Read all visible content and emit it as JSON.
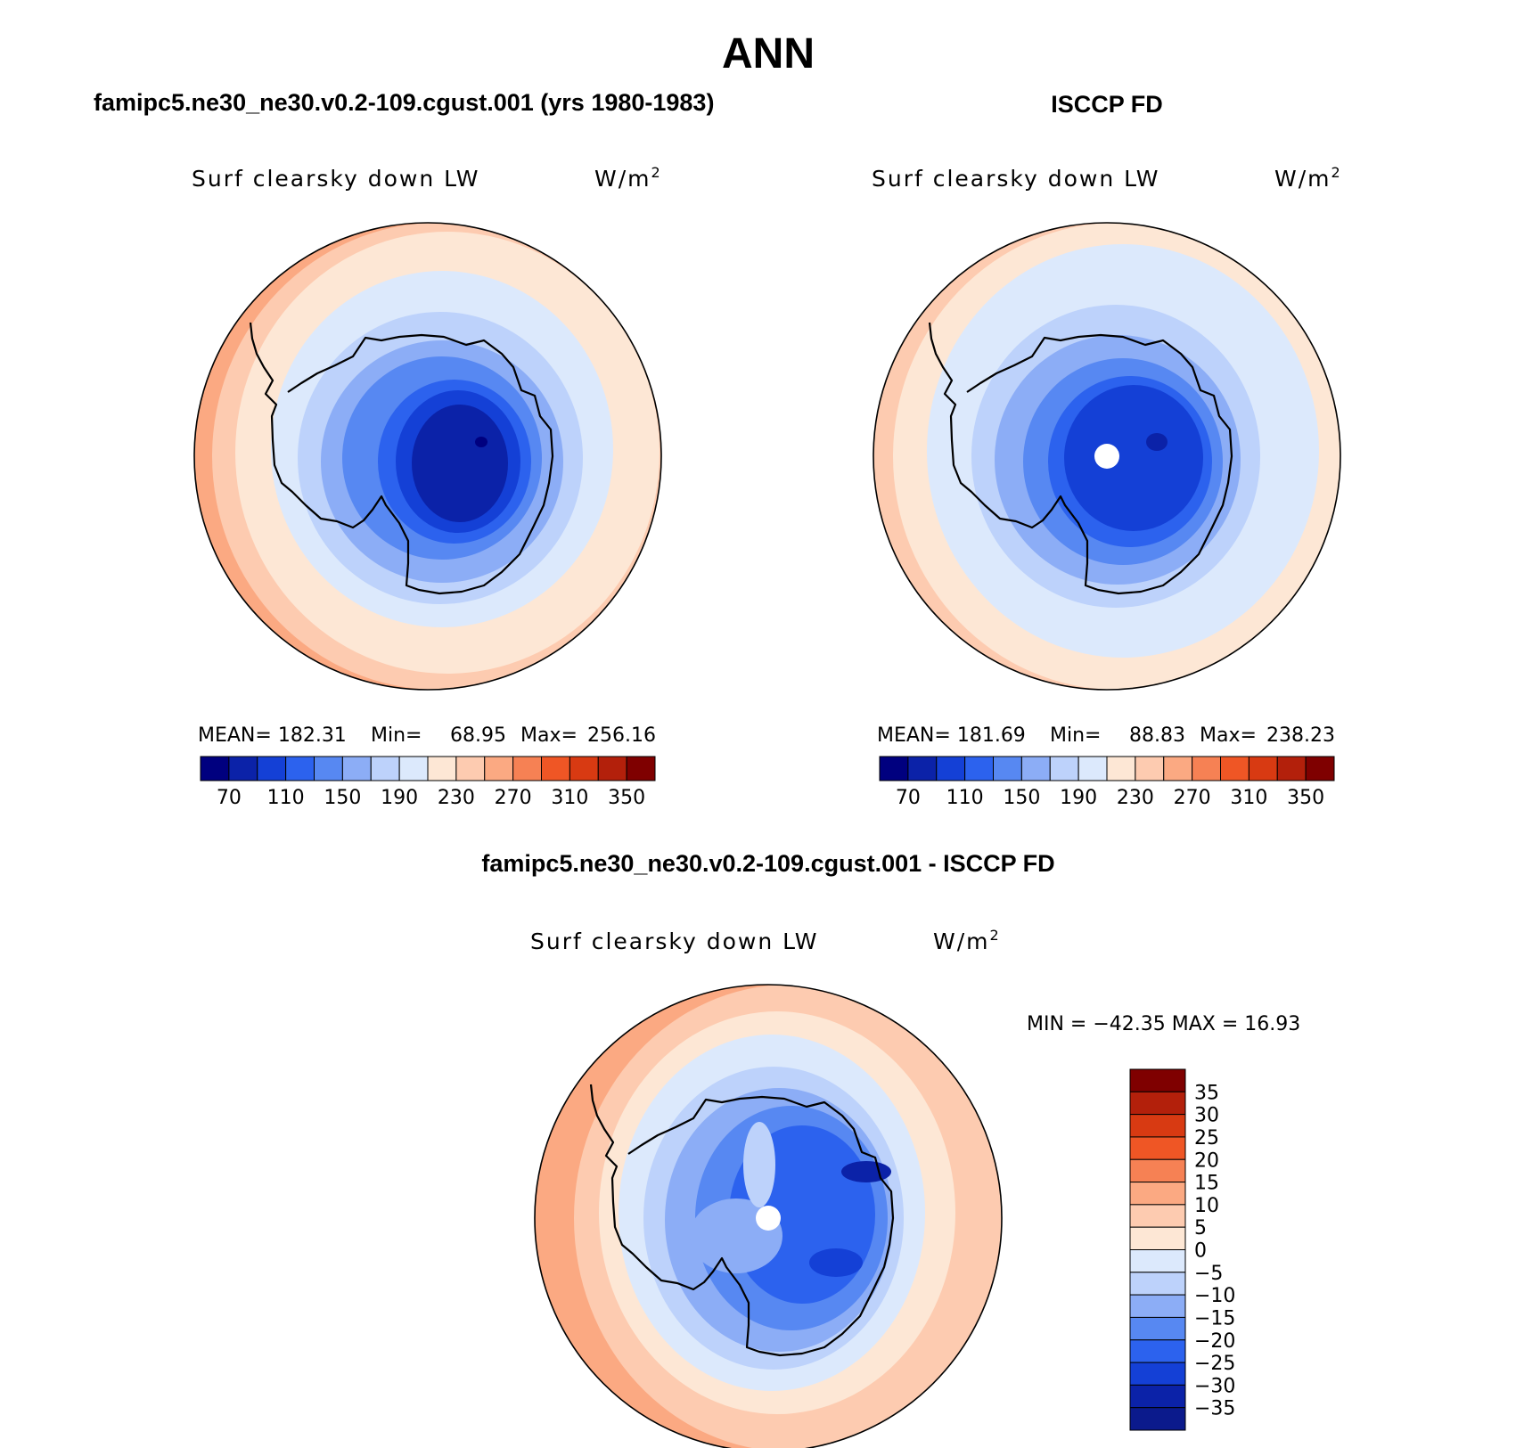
{
  "chart_data": {
    "type": "heatmap",
    "title": "ANN",
    "colors": {
      "abs_scale": [
        "#00007f",
        "#0b22a8",
        "#1440d6",
        "#2c62ee",
        "#5788f2",
        "#8cadf6",
        "#bdd2fb",
        "#dce9fc",
        "#fde7d5",
        "#fdcbb0",
        "#fba982",
        "#f68154",
        "#ef5625",
        "#d83a12",
        "#b3200b",
        "#7f0000"
      ],
      "diff_scale": [
        "#0b1a8c",
        "#0b22a8",
        "#1440d6",
        "#2c62ee",
        "#5788f2",
        "#8cadf6",
        "#bdd2fb",
        "#dce9fc",
        "#fde7d5",
        "#fdcbb0",
        "#fba982",
        "#f68154",
        "#ef5625",
        "#d83a12",
        "#b3200b",
        "#7f0000"
      ],
      "coastline": "#000000",
      "pole_mask": "#ffffff"
    },
    "panels": [
      {
        "id": "model",
        "heading": "famipc5.ne30_ne30.v0.2-109.cgust.001 (yrs 1980-1983)",
        "variable": "Surf clearsky down LW",
        "units_prefix": "W/m",
        "units_exp": "2",
        "mean_label": "MEAN=",
        "mean": "182.31",
        "min_label": "Min=",
        "min": "68.95",
        "max_label": "Max=",
        "max": "256.16",
        "pole_mask": false,
        "colorbar_ticks": [
          "70",
          "110",
          "150",
          "190",
          "230",
          "270",
          "310",
          "350"
        ]
      },
      {
        "id": "obs",
        "heading": "ISCCP FD",
        "variable": "Surf clearsky down LW",
        "units_prefix": "W/m",
        "units_exp": "2",
        "mean_label": "MEAN=",
        "mean": "181.69",
        "min_label": "Min=",
        "min": "88.83",
        "max_label": "Max=",
        "max": "238.23",
        "pole_mask": true,
        "colorbar_ticks": [
          "70",
          "110",
          "150",
          "190",
          "230",
          "270",
          "310",
          "350"
        ]
      },
      {
        "id": "diff",
        "heading": "famipc5.ne30_ne30.v0.2-109.cgust.001 - ISCCP FD",
        "variable": "Surf clearsky down LW",
        "units_prefix": "W/m",
        "units_exp": "2",
        "min_max_text": "MIN = −42.35 MAX =  16.93",
        "min": -42.35,
        "max": 16.93,
        "pole_mask": true,
        "colorbar_ticks": [
          "35",
          "30",
          "25",
          "20",
          "15",
          "10",
          "5",
          "0",
          "−5",
          "−10",
          "−15",
          "−20",
          "−25",
          "−30",
          "−35"
        ]
      }
    ]
  }
}
